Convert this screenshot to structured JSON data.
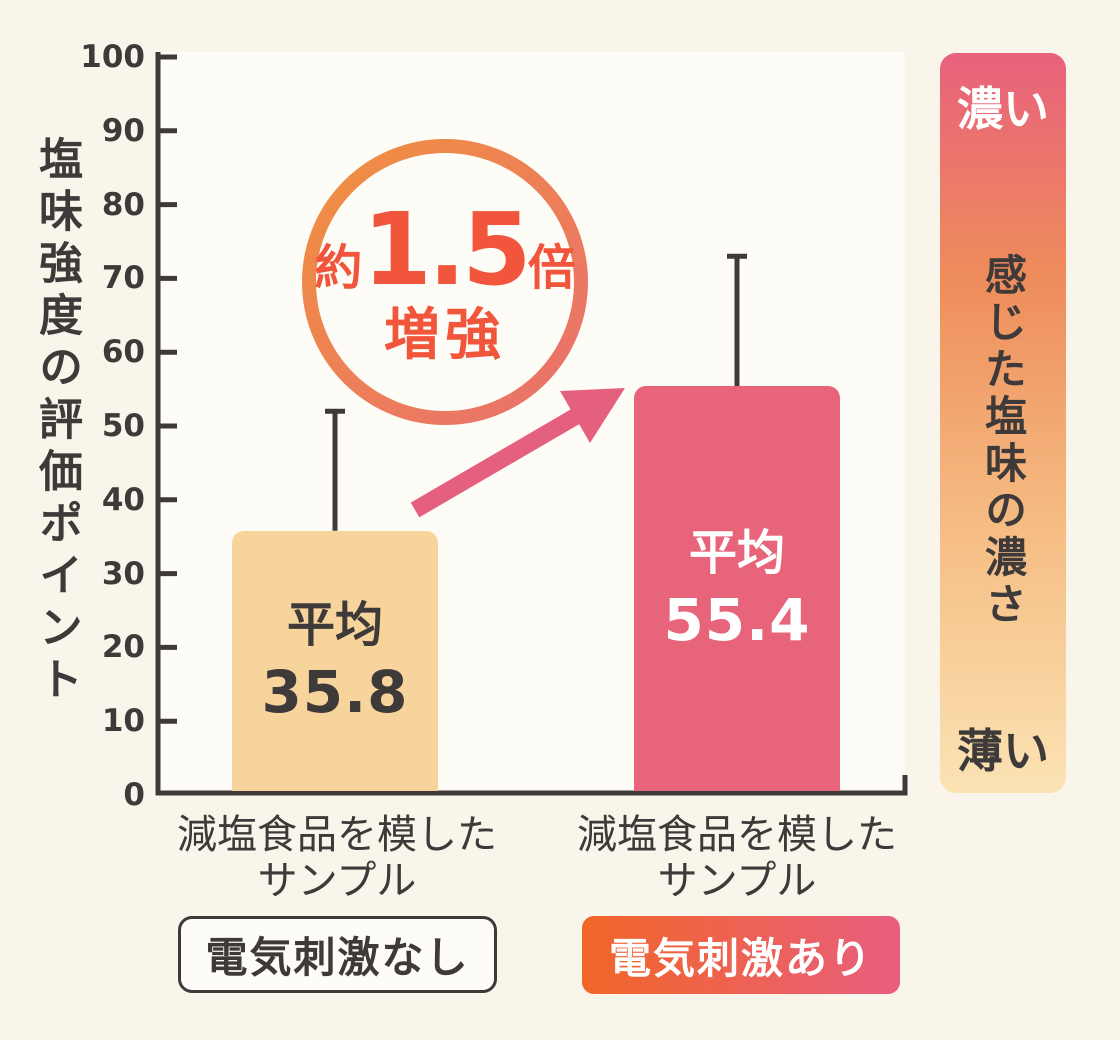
{
  "colors": {
    "background": "#FAF5EB",
    "plot_bg": "#FEFCF6",
    "axis": "#3E3A39",
    "accent_text": "#F1563C",
    "arrow": "#E4607E",
    "ring_start": "#F0903F",
    "ring_end": "#E9706E",
    "legend_stim_start": "#F16627",
    "legend_stim_end": "#E85E7F",
    "scale_top": "#E8617C",
    "scale_mid": "#EE8C5B",
    "scale_low": "#F5BA80",
    "scale_bottom": "#FBE3B4"
  },
  "chart_data": {
    "type": "bar",
    "title": "",
    "ylabel": "塩味強度の評価ポイント",
    "xlabel": "",
    "ylim": [
      0,
      100
    ],
    "yticks": [
      0,
      10,
      20,
      30,
      40,
      50,
      60,
      70,
      80,
      90,
      100
    ],
    "grid": false,
    "categories": [
      "減塩食品を模したサンプル",
      "減塩食品を模したサンプル"
    ],
    "bars": [
      {
        "category_lines": [
          "減塩食品を模した",
          "サンプル"
        ],
        "condition": "電気刺激なし",
        "mean_prefix": "平均",
        "value": 35.8,
        "value_label": "35.8",
        "error_top": 52,
        "fill": "#F8D49D",
        "label_color": "#3E3A39"
      },
      {
        "category_lines": [
          "減塩食品を模した",
          "サンプル"
        ],
        "condition": "電気刺激あり",
        "mean_prefix": "平均",
        "value": 55.4,
        "value_label": "55.4",
        "error_top": 73,
        "fill": "#E7647A",
        "label_color": "#FFFFFF"
      }
    ],
    "annotation_badge": {
      "prefix": "約",
      "multiplier": "1.5",
      "suffix": "倍",
      "line2": "増強"
    },
    "color_scale": {
      "top_label": "濃い",
      "axis_label": "感じた塩味の濃さ",
      "bottom_label": "薄い"
    }
  }
}
